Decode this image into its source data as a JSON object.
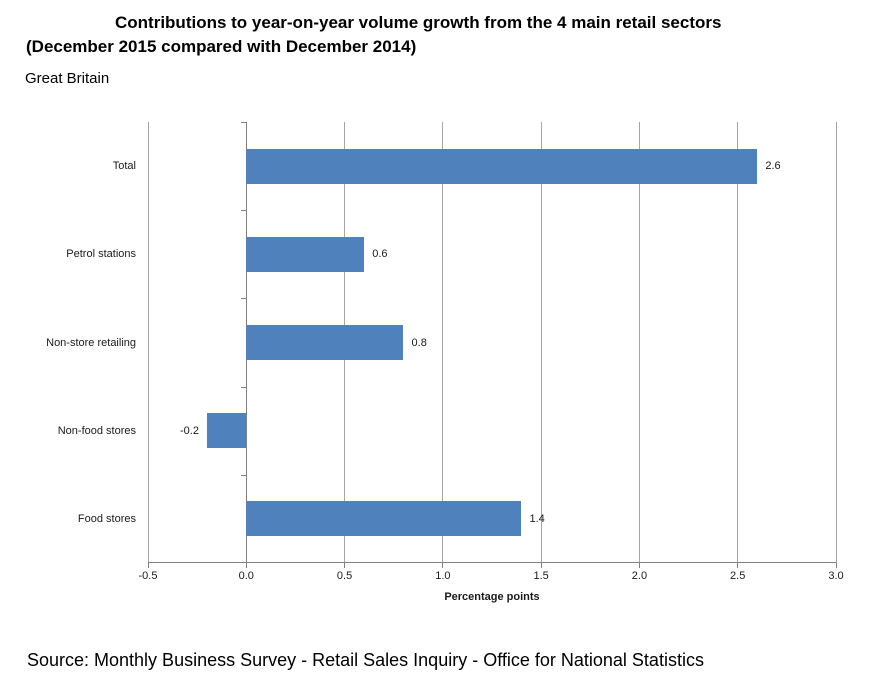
{
  "header": {
    "title_line1": "Contributions to year-on-year volume growth from the 4 main retail sectors",
    "title_line2": "(December 2015 compared with December 2014)",
    "subtitle": "Great Britain"
  },
  "chart_data": {
    "type": "bar",
    "orientation": "horizontal",
    "categories": [
      "Total",
      "Petrol stations",
      "Non-store retailing",
      "Non-food stores",
      "Food stores"
    ],
    "values": [
      2.6,
      0.6,
      0.8,
      -0.2,
      1.4
    ],
    "value_labels": [
      "2.6",
      "0.6",
      "0.8",
      "-0.2",
      "1.4"
    ],
    "title": "Contributions to year-on-year volume growth from the 4 main retail sectors (December 2015 compared with December 2014)",
    "subtitle": "Great Britain",
    "xlabel": "Percentage points",
    "ylabel": "",
    "xlim": [
      -0.5,
      3.0
    ],
    "xticks": [
      -0.5,
      0,
      0.5,
      1,
      1.5,
      2,
      2.5,
      3
    ],
    "xtick_labels": [
      "-0.5",
      "0.0",
      "0.5",
      "1.0",
      "1.5",
      "2.0",
      "2.5",
      "3.0"
    ],
    "grid": true,
    "legend_position": "none",
    "bar_color": "#4F81BD",
    "gridline_color": "#A6A6A6",
    "axis_color": "#808080",
    "label_color": "#1a1a1a"
  },
  "footer": {
    "source": "Source: Monthly Business Survey - Retail Sales Inquiry - Office for National Statistics"
  }
}
